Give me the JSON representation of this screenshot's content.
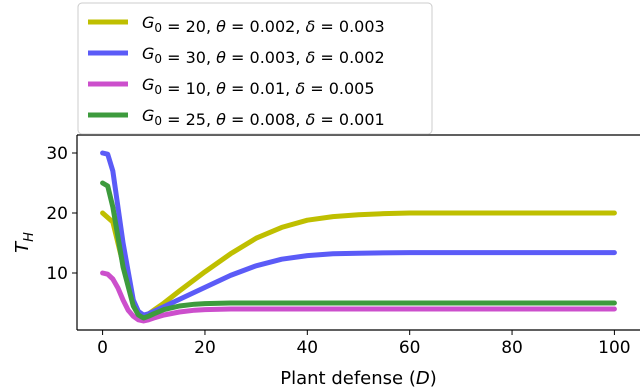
{
  "chart_data": {
    "type": "line",
    "title": "",
    "xlabel": "Plant defense (D)",
    "ylabel": "T_H",
    "xlim": [
      -5,
      105
    ],
    "ylim": [
      0.5,
      33.0
    ],
    "xticks": [
      0,
      20,
      40,
      60,
      80,
      100
    ],
    "yticks": [
      10,
      20,
      30
    ],
    "grid": false,
    "legend_position": "top-left, above plot",
    "series": [
      {
        "name": "G_0 = 20, θ = 0.002, δ = 0.003",
        "color": "#bfbf00",
        "x": [
          0,
          2,
          4,
          6,
          7,
          8,
          9,
          10,
          12,
          15,
          20,
          25,
          30,
          35,
          40,
          45,
          50,
          55,
          60,
          70,
          80,
          90,
          100
        ],
        "y": [
          20.0,
          18.5,
          11.5,
          5.0,
          3.5,
          2.8,
          3.2,
          3.8,
          5.0,
          7.0,
          10.2,
          13.2,
          15.8,
          17.6,
          18.8,
          19.4,
          19.7,
          19.9,
          20.0,
          20.0,
          20.0,
          20.0,
          20.0
        ]
      },
      {
        "name": "G_0 = 30, θ = 0.003, δ = 0.002",
        "color": "#5b5bf7",
        "x": [
          0,
          1,
          2,
          4,
          6,
          7,
          8,
          9,
          10,
          12,
          15,
          20,
          25,
          30,
          35,
          40,
          45,
          50,
          60,
          70,
          80,
          90,
          100
        ],
        "y": [
          30.0,
          29.8,
          27.0,
          15.0,
          5.5,
          3.6,
          3.0,
          3.2,
          3.6,
          4.4,
          5.6,
          7.6,
          9.6,
          11.2,
          12.3,
          12.9,
          13.2,
          13.3,
          13.4,
          13.4,
          13.4,
          13.4,
          13.4
        ]
      },
      {
        "name": "G_0 = 10, θ = 0.01, δ = 0.005",
        "color": "#cc4fcc",
        "x": [
          0,
          1,
          2,
          3,
          4,
          5,
          6,
          7,
          8,
          9,
          10,
          12,
          15,
          18,
          20,
          25,
          30,
          40,
          50,
          60,
          80,
          100
        ],
        "y": [
          10.0,
          9.8,
          9.0,
          7.5,
          5.5,
          3.8,
          2.8,
          2.2,
          2.0,
          2.2,
          2.5,
          3.0,
          3.5,
          3.8,
          3.9,
          4.0,
          4.0,
          4.0,
          4.0,
          4.0,
          4.0,
          4.0
        ]
      },
      {
        "name": "G_0 = 25, θ = 0.008, δ = 0.001",
        "color": "#3d9b3d",
        "x": [
          0,
          1,
          2,
          4,
          6,
          7,
          8,
          9,
          10,
          12,
          15,
          18,
          20,
          25,
          30,
          40,
          50,
          60,
          80,
          100
        ],
        "y": [
          25.0,
          24.5,
          21.0,
          11.0,
          4.5,
          3.0,
          2.5,
          2.8,
          3.2,
          3.9,
          4.5,
          4.8,
          4.9,
          5.0,
          5.0,
          5.0,
          5.0,
          5.0,
          5.0,
          5.0
        ]
      }
    ]
  }
}
